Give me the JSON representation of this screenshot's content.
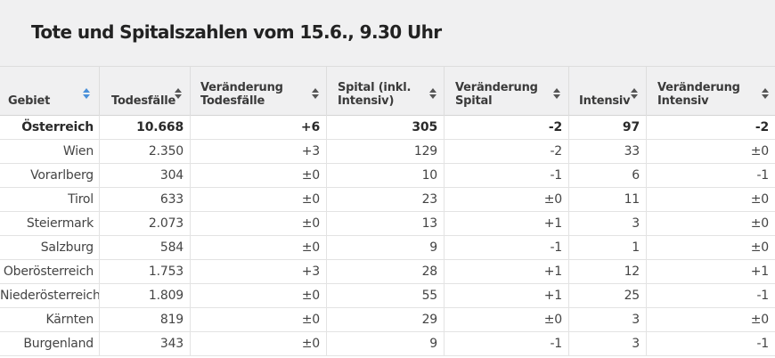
{
  "title": "Tote und Spitalszahlen vom 15.6., 9.30 Uhr",
  "colors": {
    "header_bg": "#f0f0f1",
    "sort_active": "#4a90d9",
    "sort_inactive": "#555555"
  },
  "columns": [
    {
      "label": "Gebiet",
      "sort_icon": "sort-icon",
      "active": true
    },
    {
      "label": "Todesfälle",
      "sort_icon": "sort-icon",
      "active": false
    },
    {
      "label": "Veränderung\nTodesfälle",
      "sort_icon": "sort-icon",
      "active": false
    },
    {
      "label": "Spital (inkl.\nIntensiv)",
      "sort_icon": "sort-icon",
      "active": false
    },
    {
      "label": "Veränderung\nSpital",
      "sort_icon": "sort-icon",
      "active": false
    },
    {
      "label": "Intensiv",
      "sort_icon": "sort-icon",
      "active": false
    },
    {
      "label": "Veränderung\nIntensiv",
      "sort_icon": "sort-icon",
      "active": false
    }
  ],
  "rows": [
    {
      "cells": [
        "Österreich",
        "10.668",
        "+6",
        "305",
        "-2",
        "97",
        "-2"
      ],
      "bold": true
    },
    {
      "cells": [
        "Wien",
        "2.350",
        "+3",
        "129",
        "-2",
        "33",
        "±0"
      ]
    },
    {
      "cells": [
        "Vorarlberg",
        "304",
        "±0",
        "10",
        "-1",
        "6",
        "-1"
      ]
    },
    {
      "cells": [
        "Tirol",
        "633",
        "±0",
        "23",
        "±0",
        "11",
        "±0"
      ]
    },
    {
      "cells": [
        "Steiermark",
        "2.073",
        "±0",
        "13",
        "+1",
        "3",
        "±0"
      ]
    },
    {
      "cells": [
        "Salzburg",
        "584",
        "±0",
        "9",
        "-1",
        "1",
        "±0"
      ]
    },
    {
      "cells": [
        "Oberösterreich",
        "1.753",
        "+3",
        "28",
        "+1",
        "12",
        "+1"
      ]
    },
    {
      "cells": [
        "Niederösterreich",
        "1.809",
        "±0",
        "55",
        "+1",
        "25",
        "-1"
      ]
    },
    {
      "cells": [
        "Kärnten",
        "819",
        "±0",
        "29",
        "±0",
        "3",
        "±0"
      ]
    },
    {
      "cells": [
        "Burgenland",
        "343",
        "±0",
        "9",
        "-1",
        "3",
        "-1"
      ]
    }
  ]
}
